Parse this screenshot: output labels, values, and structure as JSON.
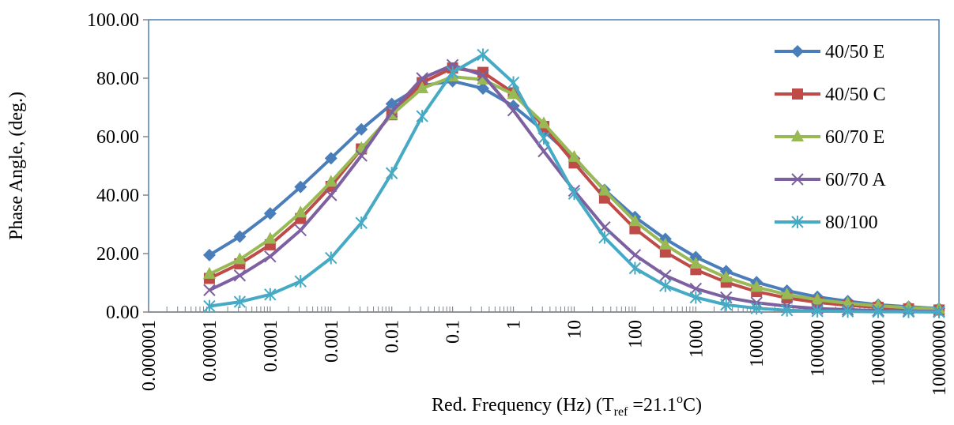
{
  "chart_data": {
    "type": "line",
    "xscale": "log",
    "xlabel": "Red. Frequency (Hz) (T",
    "xlabel_sub": "ref",
    "xlabel_mid": " =21.1",
    "xlabel_sup": "o",
    "xlabel_end": "C)",
    "ylabel": "Phase  Angle, (deg.)",
    "ylim": [
      0,
      100
    ],
    "xlim": [
      1e-06,
      10000000
    ],
    "y_ticks": [
      "0.00",
      "20.00",
      "40.00",
      "60.00",
      "80.00",
      "100.00"
    ],
    "x_ticks": [
      "0.000001",
      "0.00001",
      "0.0001",
      "0.001",
      "0.01",
      "0.1",
      "1",
      "10",
      "100",
      "1000",
      "10000",
      "100000",
      "1000000",
      "10000000"
    ],
    "grid": false,
    "legend_position": "right",
    "x": [
      1e-05,
      3.16e-05,
      0.0001,
      0.000316,
      0.001,
      0.00316,
      0.01,
      0.0316,
      0.1,
      0.316,
      1,
      3.16,
      10,
      31.6,
      100,
      316,
      1000,
      3160,
      10000,
      31600,
      100000,
      316000,
      1000000,
      3160000,
      10000000
    ],
    "series": [
      {
        "name": "40/50 E",
        "color": "#4A7EBB",
        "marker": "diamond",
        "values": [
          19.5,
          25.8,
          33.7,
          42.8,
          52.6,
          62.5,
          71.2,
          77.5,
          79.0,
          76.5,
          70.5,
          62.0,
          52.5,
          41.8,
          32.5,
          25.0,
          18.8,
          14.0,
          10.2,
          7.3,
          5.2,
          3.7,
          2.5,
          1.8,
          1.2
        ]
      },
      {
        "name": "40/50 C",
        "color": "#BE4B48",
        "marker": "square",
        "values": [
          11.5,
          16.5,
          23.0,
          32.0,
          43.0,
          55.8,
          67.5,
          78.5,
          83.5,
          82.0,
          75.0,
          63.5,
          51.0,
          39.0,
          28.5,
          20.5,
          14.5,
          10.2,
          7.0,
          4.8,
          3.3,
          2.3,
          1.6,
          1.1,
          0.7
        ]
      },
      {
        "name": "60/70 E",
        "color": "#98B954",
        "marker": "triangle",
        "values": [
          13.0,
          18.0,
          25.0,
          34.0,
          44.5,
          56.0,
          67.5,
          76.5,
          80.5,
          79.5,
          74.5,
          64.5,
          53.0,
          41.5,
          31.0,
          23.0,
          16.5,
          11.8,
          8.5,
          6.0,
          4.2,
          3.0,
          2.1,
          1.5,
          1.0
        ]
      },
      {
        "name": "60/70 A",
        "color": "#7D60A0",
        "marker": "x",
        "values": [
          7.5,
          12.5,
          19.0,
          28.0,
          40.0,
          53.5,
          68.5,
          80.0,
          84.5,
          81.0,
          69.0,
          55.0,
          41.5,
          29.0,
          19.5,
          12.5,
          8.0,
          5.0,
          3.2,
          2.0,
          1.2,
          0.8,
          0.5,
          0.3,
          0.2
        ]
      },
      {
        "name": "80/100",
        "color": "#46AAC5",
        "marker": "asterisk",
        "values": [
          2.0,
          3.5,
          6.0,
          10.5,
          18.5,
          30.5,
          47.5,
          67.0,
          82.0,
          88.0,
          78.5,
          59.5,
          40.5,
          25.5,
          15.0,
          9.0,
          5.0,
          2.5,
          1.3,
          0.6,
          0.3,
          0.2,
          0.1,
          0.1,
          0.0
        ]
      }
    ]
  }
}
